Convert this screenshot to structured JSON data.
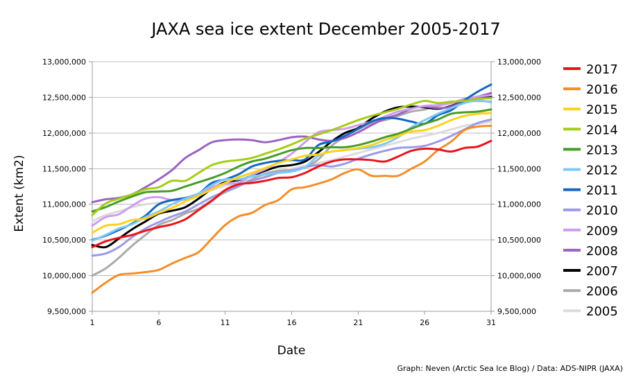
{
  "chart_data": {
    "type": "line",
    "title": "JAXA sea ice extent December 2005-2017",
    "xlabel": "Date",
    "ylabel": "Extent (km2)",
    "credit": "Graph: Neven (Arctic Sea Ice Blog) / Data: ADS-NIPR (JAXA)",
    "xlim": [
      1,
      31
    ],
    "ylim": [
      9500000,
      13000000
    ],
    "x_ticks": [
      1,
      6,
      11,
      16,
      21,
      26,
      31
    ],
    "x_tick_labels": [
      "1",
      "6",
      "11",
      "16",
      "21",
      "26",
      "31"
    ],
    "y_ticks": [
      9500000,
      10000000,
      10500000,
      11000000,
      11500000,
      12000000,
      12500000,
      13000000
    ],
    "y_tick_labels": [
      "9,500,000",
      "10,000,000",
      "10,500,000",
      "11,000,000",
      "11,500,000",
      "12,000,000",
      "12,500,000",
      "13,000,000"
    ],
    "grid": true,
    "legend_position": "right",
    "x": [
      1,
      2,
      3,
      4,
      5,
      6,
      7,
      8,
      9,
      10,
      11,
      12,
      13,
      14,
      15,
      16,
      17,
      18,
      19,
      20,
      21,
      22,
      23,
      24,
      25,
      26,
      27,
      28,
      29,
      30,
      31
    ],
    "series": [
      {
        "name": "2017",
        "color": "#e8141b",
        "values": [
          10400000,
          10480000,
          10530000,
          10570000,
          10630000,
          10680000,
          10720000,
          10790000,
          10920000,
          11050000,
          11200000,
          11280000,
          11300000,
          11330000,
          11370000,
          11380000,
          11440000,
          11530000,
          11600000,
          11630000,
          11630000,
          11620000,
          11600000,
          11670000,
          11750000,
          11780000,
          11770000,
          11740000,
          11790000,
          11810000,
          11890000
        ]
      },
      {
        "name": "2016",
        "color": "#f48d28",
        "values": [
          9760000,
          9900000,
          10010000,
          10030000,
          10050000,
          10080000,
          10170000,
          10250000,
          10330000,
          10520000,
          10710000,
          10830000,
          10880000,
          10990000,
          11060000,
          11210000,
          11240000,
          11290000,
          11350000,
          11440000,
          11490000,
          11400000,
          11400000,
          11400000,
          11500000,
          11600000,
          11760000,
          11880000,
          12040000,
          12090000,
          12100000
        ]
      },
      {
        "name": "2015",
        "color": "#fbd31c",
        "values": [
          10600000,
          10700000,
          10720000,
          10780000,
          10800000,
          10880000,
          10950000,
          11040000,
          11120000,
          11210000,
          11300000,
          11380000,
          11440000,
          11510000,
          11580000,
          11630000,
          11680000,
          11700000,
          11740000,
          11760000,
          11790000,
          11830000,
          11900000,
          11960000,
          12020000,
          12040000,
          12100000,
          12180000,
          12240000,
          12270000,
          12280000
        ]
      },
      {
        "name": "2014",
        "color": "#a5cc17",
        "values": [
          10850000,
          11010000,
          11080000,
          11140000,
          11210000,
          11240000,
          11330000,
          11330000,
          11440000,
          11550000,
          11600000,
          11620000,
          11650000,
          11710000,
          11770000,
          11840000,
          11920000,
          11980000,
          12040000,
          12110000,
          12180000,
          12240000,
          12290000,
          12340000,
          12400000,
          12450000,
          12420000,
          12440000,
          12450000,
          12480000,
          12490000
        ]
      },
      {
        "name": "2013",
        "color": "#469c26",
        "values": [
          10900000,
          10960000,
          11040000,
          11110000,
          11170000,
          11180000,
          11190000,
          11250000,
          11310000,
          11370000,
          11440000,
          11530000,
          11600000,
          11640000,
          11700000,
          11760000,
          11790000,
          11790000,
          11800000,
          11800000,
          11830000,
          11880000,
          11940000,
          11990000,
          12060000,
          12130000,
          12190000,
          12270000,
          12290000,
          12300000,
          12330000
        ]
      },
      {
        "name": "2012",
        "color": "#80c8f6",
        "values": [
          10490000,
          10570000,
          10660000,
          10720000,
          10820000,
          10900000,
          11000000,
          11080000,
          11150000,
          11270000,
          11350000,
          11350000,
          11390000,
          11420000,
          11440000,
          11460000,
          11520000,
          11680000,
          11740000,
          11760000,
          11780000,
          11800000,
          11850000,
          11940000,
          12080000,
          12180000,
          12270000,
          12350000,
          12420000,
          12460000,
          12430000
        ]
      },
      {
        "name": "2011",
        "color": "#1466c2",
        "values": [
          10500000,
          10560000,
          10640000,
          10730000,
          10840000,
          11000000,
          11060000,
          11090000,
          11150000,
          11300000,
          11350000,
          11420000,
          11530000,
          11580000,
          11610000,
          11620000,
          11630000,
          11830000,
          11880000,
          11960000,
          12060000,
          12160000,
          12210000,
          12200000,
          12160000,
          12130000,
          12250000,
          12320000,
          12460000,
          12580000,
          12680000
        ]
      },
      {
        "name": "2010",
        "color": "#9a9ae8",
        "values": [
          10280000,
          10310000,
          10400000,
          10540000,
          10660000,
          10750000,
          10830000,
          10900000,
          11000000,
          11100000,
          11180000,
          11260000,
          11330000,
          11380000,
          11440000,
          11470000,
          11520000,
          11550000,
          11530000,
          11570000,
          11640000,
          11700000,
          11750000,
          11790000,
          11800000,
          11820000,
          11880000,
          11960000,
          12050000,
          12140000,
          12190000
        ]
      },
      {
        "name": "2009",
        "color": "#cf9ced",
        "values": [
          10700000,
          10820000,
          10860000,
          10980000,
          11080000,
          11100000,
          11060000,
          11070000,
          11150000,
          11240000,
          11290000,
          11300000,
          11410000,
          11490000,
          11590000,
          11710000,
          11870000,
          12010000,
          12040000,
          12060000,
          12110000,
          12160000,
          12230000,
          12300000,
          12340000,
          12380000,
          12390000,
          12420000,
          12480000,
          12510000,
          12530000
        ]
      },
      {
        "name": "2008",
        "color": "#9a62c2",
        "values": [
          11030000,
          11070000,
          11090000,
          11140000,
          11240000,
          11350000,
          11480000,
          11650000,
          11760000,
          11870000,
          11900000,
          11910000,
          11900000,
          11870000,
          11900000,
          11940000,
          11950000,
          11910000,
          11890000,
          11930000,
          12010000,
          12110000,
          12200000,
          12260000,
          12340000,
          12370000,
          12350000,
          12370000,
          12450000,
          12510000,
          12560000
        ]
      },
      {
        "name": "2007",
        "color": "#000000",
        "values": [
          10430000,
          10400000,
          10520000,
          10650000,
          10760000,
          10870000,
          10910000,
          10960000,
          11080000,
          11220000,
          11310000,
          11340000,
          11400000,
          11470000,
          11530000,
          11550000,
          11600000,
          11730000,
          11880000,
          12000000,
          12070000,
          12200000,
          12300000,
          12360000,
          12370000,
          12360000,
          12340000,
          12380000,
          12450000,
          12500000,
          12510000
        ]
      },
      {
        "name": "2006",
        "color": "#aaaaaa",
        "values": [
          10000000,
          10100000,
          10250000,
          10420000,
          10570000,
          10710000,
          10780000,
          10870000,
          10940000,
          11060000,
          11170000,
          11250000,
          11350000,
          11430000,
          11470000,
          11480000,
          11520000,
          11630000,
          11820000,
          11950000,
          12050000,
          12140000,
          12180000,
          12240000,
          12300000,
          12330000,
          12380000,
          12420000,
          12440000,
          12450000,
          12440000
        ]
      },
      {
        "name": "2005",
        "color": "#dcdcdc",
        "values": [
          10760000,
          10850000,
          10900000,
          10960000,
          11000000,
          11020000,
          11050000,
          11090000,
          11150000,
          11200000,
          11260000,
          11300000,
          11350000,
          11400000,
          11450000,
          11500000,
          11540000,
          11580000,
          11620000,
          11670000,
          11720000,
          11770000,
          11820000,
          11870000,
          11920000,
          11960000,
          12000000,
          12050000,
          12100000,
          12130000,
          12160000
        ]
      }
    ]
  }
}
